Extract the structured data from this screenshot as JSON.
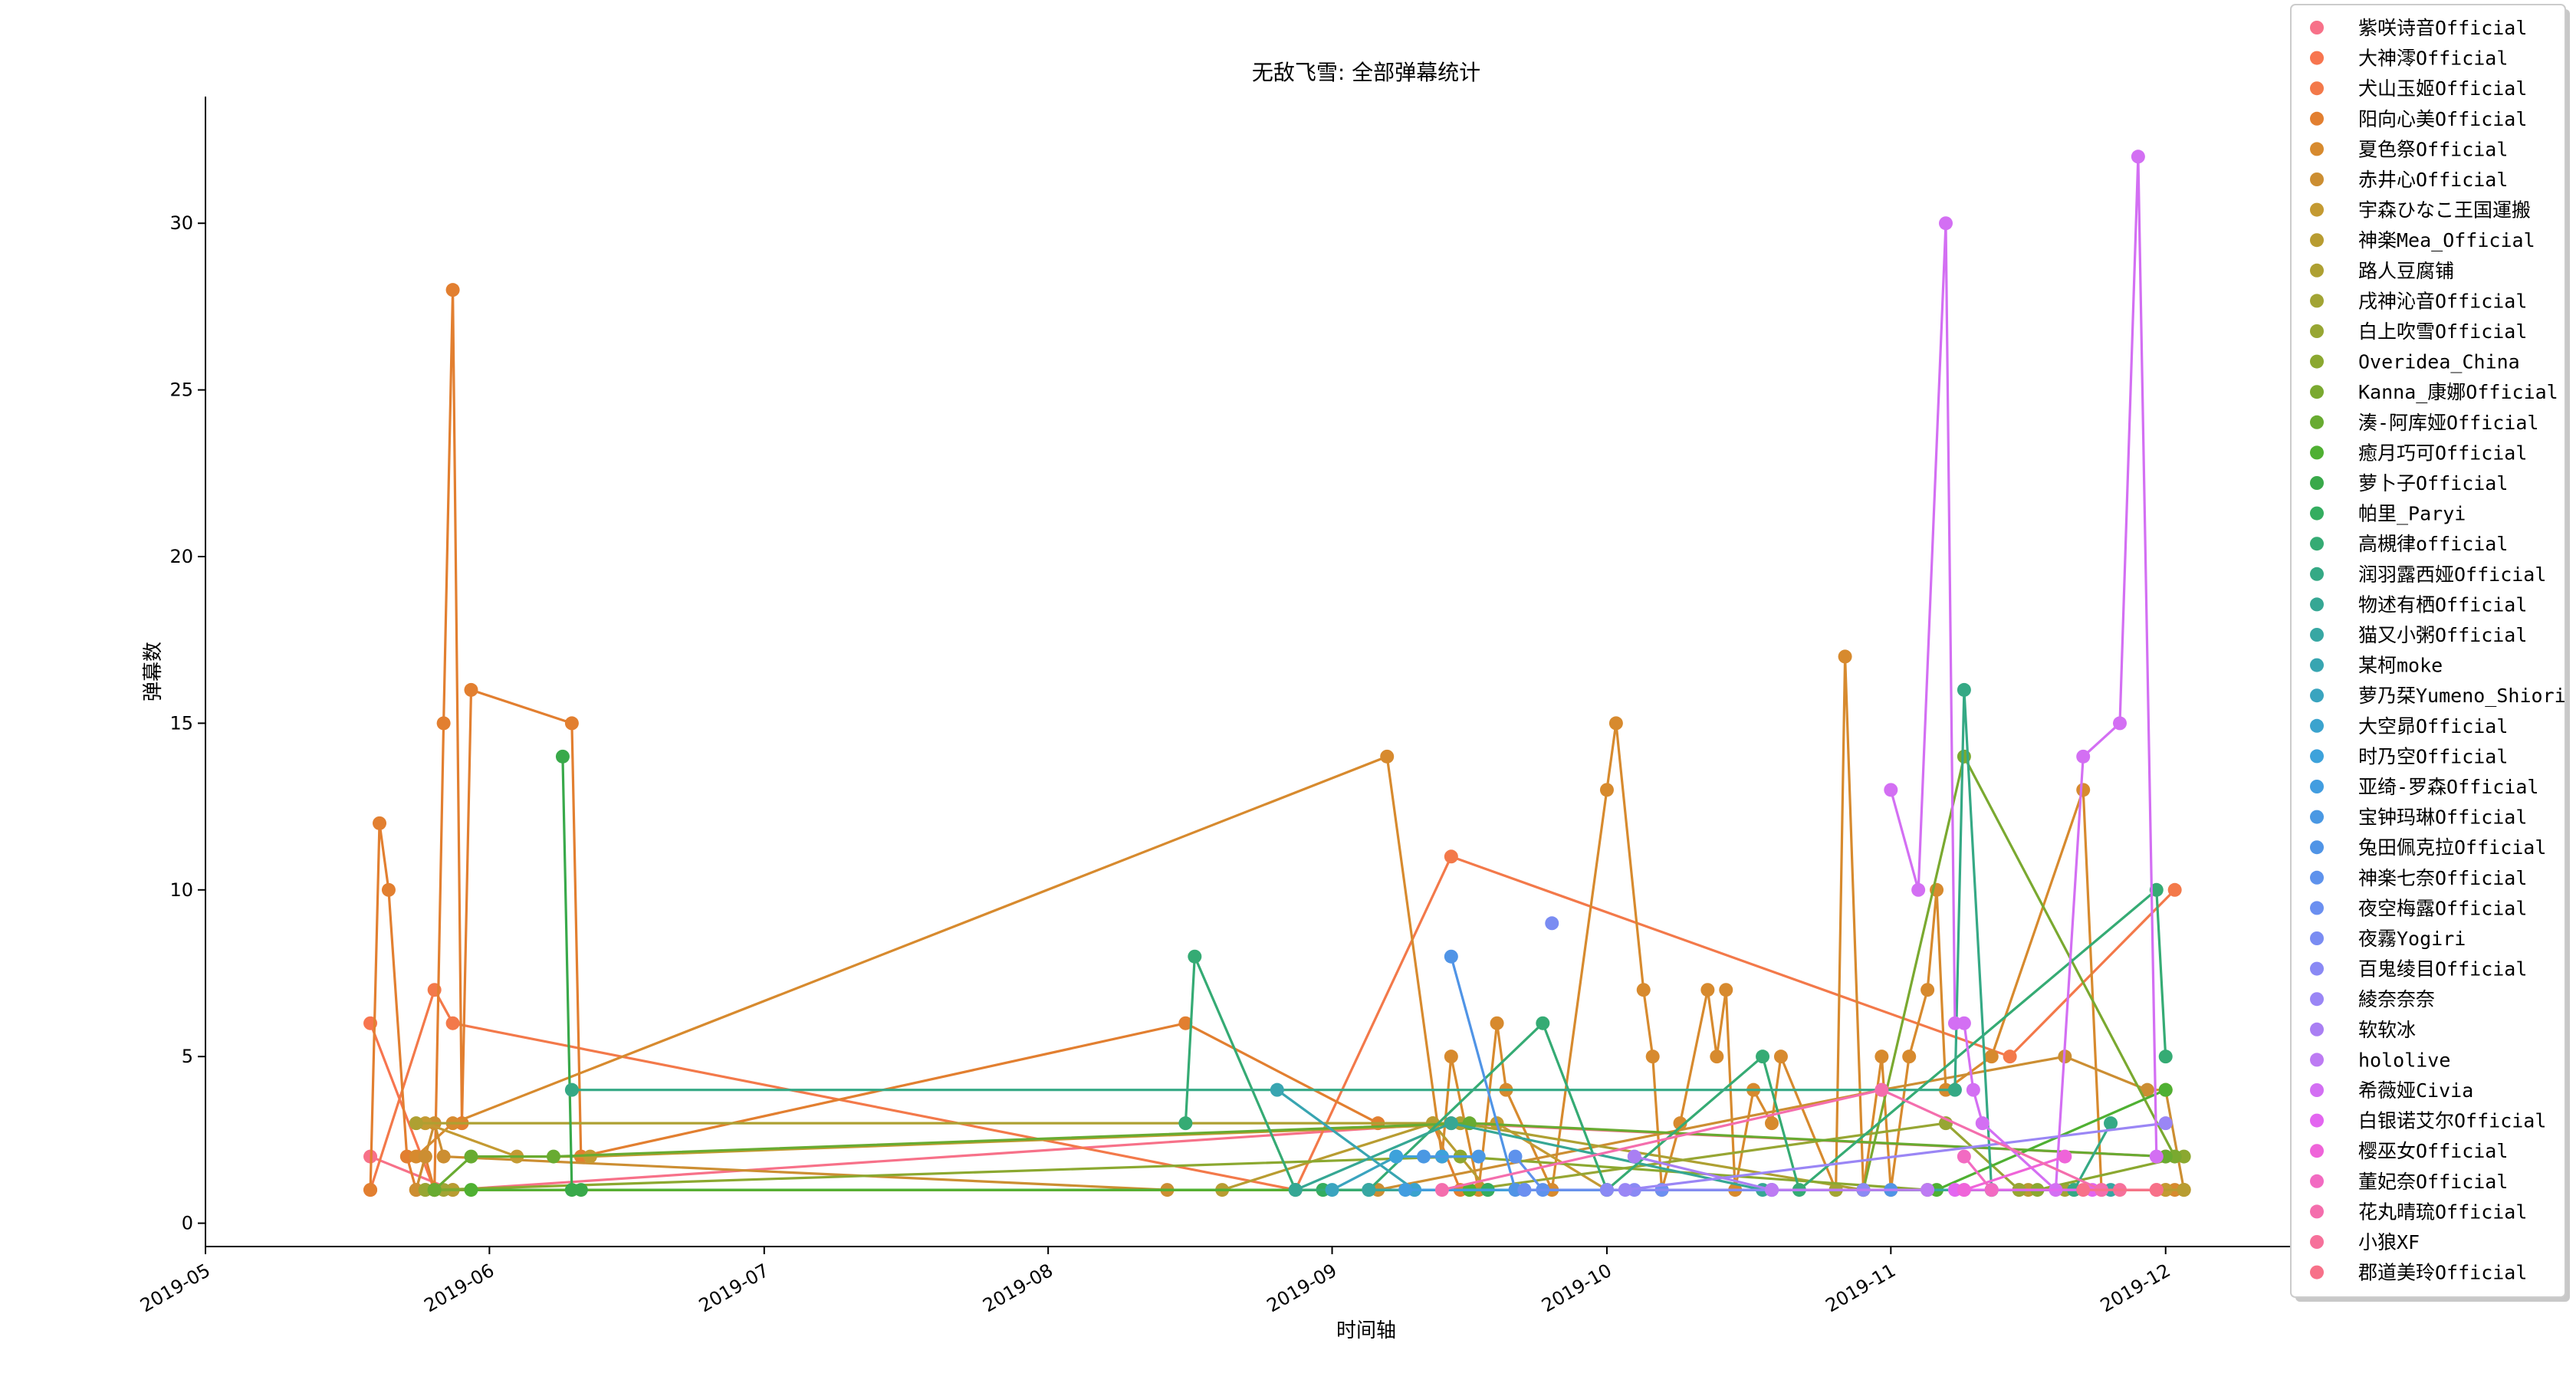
{
  "chart_data": {
    "type": "line",
    "title": "无敌飞雪: 全部弹幕统计",
    "xlabel": "时间轴",
    "ylabel": "弹幕数",
    "xlim": [
      "2019-05-01",
      "2019-12-15"
    ],
    "ylim": [
      -0.7,
      33.8
    ],
    "x_ticks": [
      "2019-05",
      "2019-06",
      "2019-07",
      "2019-08",
      "2019-09",
      "2019-10",
      "2019-11",
      "2019-12"
    ],
    "x_tick_dates": [
      "2019-05-01",
      "2019-06-01",
      "2019-07-01",
      "2019-08-01",
      "2019-09-01",
      "2019-10-01",
      "2019-11-01",
      "2019-12-01"
    ],
    "y_ticks": [
      0,
      5,
      10,
      15,
      20,
      25,
      30
    ],
    "legend_position": "upper right (outside)",
    "series": [
      {
        "name": "紫咲诗音Official",
        "color": "#f77189",
        "points": [
          [
            "2019-05-19",
            2
          ],
          [
            "2019-05-28",
            1
          ],
          [
            "2019-09-14",
            3
          ],
          [
            "2019-12-01",
            2
          ]
        ]
      },
      {
        "name": "大神澪Official",
        "color": "#f7754f",
        "points": [
          [
            "2019-05-19",
            6
          ],
          [
            "2019-05-26",
            1
          ],
          [
            "2019-12-01",
            1
          ]
        ]
      },
      {
        "name": "犬山玉姬Official",
        "color": "#f3794a",
        "points": [
          [
            "2019-05-19",
            1
          ],
          [
            "2019-05-26",
            7
          ],
          [
            "2019-05-28",
            6
          ],
          [
            "2019-08-28",
            1
          ],
          [
            "2019-09-14",
            11
          ],
          [
            "2019-11-14",
            5
          ],
          [
            "2019-12-02",
            10
          ]
        ]
      },
      {
        "name": "阳向心美Official",
        "color": "#e27f30",
        "points": [
          [
            "2019-05-19",
            1
          ],
          [
            "2019-05-20",
            12
          ],
          [
            "2019-05-21",
            10
          ],
          [
            "2019-05-23",
            2
          ],
          [
            "2019-05-24",
            1
          ],
          [
            "2019-05-25",
            2
          ],
          [
            "2019-05-26",
            1
          ],
          [
            "2019-05-27",
            15
          ],
          [
            "2019-05-28",
            28
          ],
          [
            "2019-05-29",
            3
          ],
          [
            "2019-05-30",
            16
          ],
          [
            "2019-06-10",
            15
          ],
          [
            "2019-06-11",
            2
          ],
          [
            "2019-08-16",
            6
          ],
          [
            "2019-09-06",
            3
          ],
          [
            "2019-09-12",
            3
          ],
          [
            "2019-09-15",
            1
          ]
        ]
      },
      {
        "name": "夏色祭Official",
        "color": "#d78a2e",
        "points": [
          [
            "2019-05-24",
            2
          ],
          [
            "2019-05-28",
            3
          ],
          [
            "2019-09-07",
            14
          ],
          [
            "2019-09-13",
            2
          ],
          [
            "2019-09-14",
            5
          ],
          [
            "2019-09-17",
            1
          ],
          [
            "2019-09-19",
            6
          ],
          [
            "2019-09-20",
            4
          ],
          [
            "2019-09-25",
            1
          ],
          [
            "2019-10-01",
            13
          ],
          [
            "2019-10-02",
            15
          ],
          [
            "2019-10-05",
            7
          ],
          [
            "2019-10-06",
            5
          ],
          [
            "2019-10-07",
            1
          ],
          [
            "2019-10-09",
            3
          ],
          [
            "2019-10-12",
            7
          ],
          [
            "2019-10-13",
            5
          ],
          [
            "2019-10-14",
            7
          ],
          [
            "2019-10-15",
            1
          ],
          [
            "2019-10-17",
            4
          ],
          [
            "2019-10-19",
            3
          ],
          [
            "2019-10-20",
            5
          ],
          [
            "2019-10-26",
            1
          ],
          [
            "2019-10-27",
            17
          ],
          [
            "2019-10-29",
            1
          ],
          [
            "2019-10-31",
            5
          ],
          [
            "2019-11-01",
            1
          ],
          [
            "2019-11-03",
            5
          ],
          [
            "2019-11-05",
            7
          ],
          [
            "2019-11-06",
            10
          ],
          [
            "2019-11-07",
            4
          ],
          [
            "2019-11-12",
            5
          ],
          [
            "2019-11-22",
            13
          ],
          [
            "2019-11-24",
            1
          ],
          [
            "2019-12-02",
            1
          ],
          [
            "2019-12-03",
            1
          ]
        ]
      },
      {
        "name": "赤井心Official",
        "color": "#cc8e32",
        "points": [
          [
            "2019-05-24",
            1
          ],
          [
            "2019-05-25",
            2
          ],
          [
            "2019-05-26",
            3
          ],
          [
            "2019-05-27",
            2
          ],
          [
            "2019-08-14",
            1
          ],
          [
            "2019-09-06",
            1
          ],
          [
            "2019-10-31",
            4
          ],
          [
            "2019-11-20",
            5
          ],
          [
            "2019-11-29",
            4
          ],
          [
            "2019-12-01",
            4
          ],
          [
            "2019-12-03",
            1
          ]
        ]
      },
      {
        "name": "宇森ひなこ王国運搬",
        "color": "#c49a32",
        "points": [
          [
            "2019-05-25",
            3
          ],
          [
            "2019-06-04",
            2
          ],
          [
            "2019-06-12",
            2
          ],
          [
            "2019-09-19",
            3
          ],
          [
            "2019-10-01",
            1
          ],
          [
            "2019-11-15",
            1
          ],
          [
            "2019-12-01",
            1
          ]
        ]
      },
      {
        "name": "神楽Mea_Official",
        "color": "#b89c31",
        "points": [
          [
            "2019-05-25",
            1
          ],
          [
            "2019-05-28",
            1
          ],
          [
            "2019-08-20",
            1
          ],
          [
            "2019-09-12",
            3
          ],
          [
            "2019-09-18",
            1
          ],
          [
            "2019-10-26",
            1
          ],
          [
            "2019-11-16",
            1
          ],
          [
            "2019-12-03",
            1
          ]
        ]
      },
      {
        "name": "路人豆腐铺",
        "color": "#aea032",
        "points": [
          [
            "2019-05-24",
            3
          ],
          [
            "2019-09-15",
            3
          ],
          [
            "2019-10-29",
            1
          ],
          [
            "2019-11-21",
            1
          ]
        ]
      },
      {
        "name": "戌神沁音Official",
        "color": "#a2a434",
        "points": [
          [
            "2019-05-27",
            1
          ],
          [
            "2019-08-31",
            1
          ],
          [
            "2019-10-26",
            1
          ],
          [
            "2019-11-20",
            1
          ]
        ]
      },
      {
        "name": "白上吹雪Official",
        "color": "#97a633",
        "points": [
          [
            "2019-05-25",
            1
          ],
          [
            "2019-09-16",
            1
          ],
          [
            "2019-11-07",
            3
          ],
          [
            "2019-11-15",
            1
          ]
        ]
      },
      {
        "name": "Overidea_China",
        "color": "#8ba830",
        "points": [
          [
            "2019-05-26",
            1
          ],
          [
            "2019-09-15",
            2
          ],
          [
            "2019-11-05",
            1
          ],
          [
            "2019-11-17",
            1
          ],
          [
            "2019-12-03",
            2
          ]
        ]
      },
      {
        "name": "Kanna_康娜Official",
        "color": "#7aa930",
        "points": [
          [
            "2019-05-26",
            1
          ],
          [
            "2019-10-29",
            1
          ],
          [
            "2019-11-09",
            14
          ],
          [
            "2019-12-02",
            2
          ]
        ]
      },
      {
        "name": "湊-阿库娅Official",
        "color": "#68ab31",
        "points": [
          [
            "2019-05-26",
            1
          ],
          [
            "2019-05-30",
            2
          ],
          [
            "2019-06-08",
            2
          ],
          [
            "2019-09-16",
            3
          ],
          [
            "2019-12-01",
            2
          ]
        ]
      },
      {
        "name": "癒月巧可Official",
        "color": "#4fb032",
        "points": [
          [
            "2019-05-30",
            1
          ],
          [
            "2019-09-16",
            1
          ],
          [
            "2019-11-06",
            1
          ],
          [
            "2019-12-01",
            4
          ]
        ]
      },
      {
        "name": "萝卜子Official",
        "color": "#39a94a",
        "points": [
          [
            "2019-06-09",
            14
          ],
          [
            "2019-06-10",
            1
          ],
          [
            "2019-06-11",
            1
          ]
        ]
      },
      {
        "name": "帕里_Paryi",
        "color": "#34ad60",
        "points": [
          [
            "2019-08-31",
            1
          ],
          [
            "2019-09-18",
            1
          ],
          [
            "2019-11-12",
            1
          ]
        ]
      },
      {
        "name": "高槻律official",
        "color": "#35ab74",
        "points": [
          [
            "2019-08-16",
            3
          ],
          [
            "2019-08-17",
            8
          ],
          [
            "2019-08-28",
            1
          ],
          [
            "2019-09-05",
            1
          ],
          [
            "2019-09-24",
            6
          ],
          [
            "2019-10-01",
            1
          ],
          [
            "2019-10-18",
            5
          ],
          [
            "2019-10-22",
            1
          ],
          [
            "2019-11-30",
            10
          ],
          [
            "2019-12-01",
            5
          ]
        ]
      },
      {
        "name": "润羽露西娅Official",
        "color": "#35a985",
        "points": [
          [
            "2019-06-10",
            4
          ],
          [
            "2019-11-08",
            4
          ],
          [
            "2019-11-09",
            16
          ],
          [
            "2019-11-12",
            1
          ],
          [
            "2019-11-21",
            1
          ],
          [
            "2019-11-25",
            3
          ]
        ]
      },
      {
        "name": "物述有栖Official",
        "color": "#36a794",
        "points": [
          [
            "2019-08-28",
            1
          ],
          [
            "2019-09-14",
            3
          ],
          [
            "2019-10-18",
            1
          ]
        ]
      },
      {
        "name": "猫又小粥Official",
        "color": "#37a7a3",
        "points": [
          [
            "2019-09-05",
            1
          ],
          [
            "2019-11-25",
            1
          ]
        ]
      },
      {
        "name": "某柯moke",
        "color": "#38a5b1",
        "points": [
          [
            "2019-08-26",
            4
          ],
          [
            "2019-09-10",
            1
          ],
          [
            "2019-10-19",
            1
          ]
        ]
      },
      {
        "name": "萝乃栞Yumeno_Shiori",
        "color": "#3aa4bf",
        "points": [
          [
            "2019-09-01",
            1
          ],
          [
            "2019-09-08",
            2
          ]
        ]
      },
      {
        "name": "大空昴Official",
        "color": "#3ba3ce",
        "points": [
          [
            "2019-09-10",
            1
          ],
          [
            "2019-10-19",
            1
          ]
        ]
      },
      {
        "name": "时乃空Official",
        "color": "#3da2db",
        "points": [
          [
            "2019-09-08",
            2
          ],
          [
            "2019-09-13",
            2
          ]
        ]
      },
      {
        "name": "亚绮-罗森Official",
        "color": "#429de0",
        "points": [
          [
            "2019-09-09",
            1
          ],
          [
            "2019-09-22",
            1
          ]
        ]
      },
      {
        "name": "宝钟玛琳Official",
        "color": "#4a98e3",
        "points": [
          [
            "2019-09-11",
            2
          ],
          [
            "2019-09-17",
            2
          ]
        ]
      },
      {
        "name": "兔田佩克拉Official",
        "color": "#5094e6",
        "points": [
          [
            "2019-09-14",
            8
          ],
          [
            "2019-09-21",
            1
          ],
          [
            "2019-11-01",
            1
          ]
        ]
      },
      {
        "name": "神楽七奈Official",
        "color": "#5e92ec",
        "points": [
          [
            "2019-09-21",
            2
          ],
          [
            "2019-09-24",
            1
          ]
        ]
      },
      {
        "name": "夜空梅露Official",
        "color": "#6b8ff0",
        "points": [
          [
            "2019-09-22",
            1
          ],
          [
            "2019-10-07",
            1
          ]
        ]
      },
      {
        "name": "夜霧Yogiri",
        "color": "#7a8cf2",
        "points": [
          [
            "2019-09-25",
            9
          ]
        ]
      },
      {
        "name": "百鬼绫目Official",
        "color": "#8a89f4",
        "points": [
          [
            "2019-10-01",
            1
          ],
          [
            "2019-10-04",
            1
          ],
          [
            "2019-10-29",
            1
          ]
        ]
      },
      {
        "name": "綾奈奈奈",
        "color": "#9a86f5",
        "points": [
          [
            "2019-10-03",
            1
          ],
          [
            "2019-12-01",
            3
          ]
        ]
      },
      {
        "name": "软软冰",
        "color": "#a97ff3",
        "points": [
          [
            "2019-10-04",
            2
          ],
          [
            "2019-10-19",
            1
          ]
        ]
      },
      {
        "name": "hololive",
        "color": "#bd7bf3",
        "points": [
          [
            "2019-10-19",
            1
          ],
          [
            "2019-11-05",
            1
          ]
        ]
      },
      {
        "name": "希薇娅Civia",
        "color": "#d36ff3",
        "points": [
          [
            "2019-11-01",
            13
          ],
          [
            "2019-11-04",
            10
          ],
          [
            "2019-11-07",
            30
          ],
          [
            "2019-11-08",
            6
          ],
          [
            "2019-11-09",
            6
          ],
          [
            "2019-11-10",
            4
          ],
          [
            "2019-11-11",
            3
          ],
          [
            "2019-11-19",
            1
          ],
          [
            "2019-11-22",
            14
          ],
          [
            "2019-11-26",
            15
          ],
          [
            "2019-11-28",
            32
          ],
          [
            "2019-11-30",
            2
          ]
        ]
      },
      {
        "name": "白银诺艾尔Official",
        "color": "#e366f0",
        "points": [
          [
            "2019-11-08",
            1
          ],
          [
            "2019-11-09",
            1
          ],
          [
            "2019-11-23",
            1
          ]
        ]
      },
      {
        "name": "樱巫女Official",
        "color": "#ef64d9",
        "points": [
          [
            "2019-11-09",
            1
          ],
          [
            "2019-11-20",
            2
          ]
        ]
      },
      {
        "name": "董妃奈Official",
        "color": "#f26bc2",
        "points": [
          [
            "2019-11-09",
            2
          ],
          [
            "2019-11-12",
            1
          ]
        ]
      },
      {
        "name": "花丸晴琉Official",
        "color": "#f46ead",
        "points": [
          [
            "2019-09-13",
            1
          ],
          [
            "2019-10-31",
            4
          ],
          [
            "2019-11-24",
            1
          ]
        ]
      },
      {
        "name": "小狼XF",
        "color": "#f6719b",
        "points": [
          [
            "2019-11-26",
            1
          ],
          [
            "2019-11-30",
            1
          ]
        ]
      },
      {
        "name": "郡道美玲Official",
        "color": "#f77189",
        "points": [
          [
            "2019-11-22",
            1
          ],
          [
            "2019-11-30",
            1
          ]
        ]
      }
    ]
  }
}
